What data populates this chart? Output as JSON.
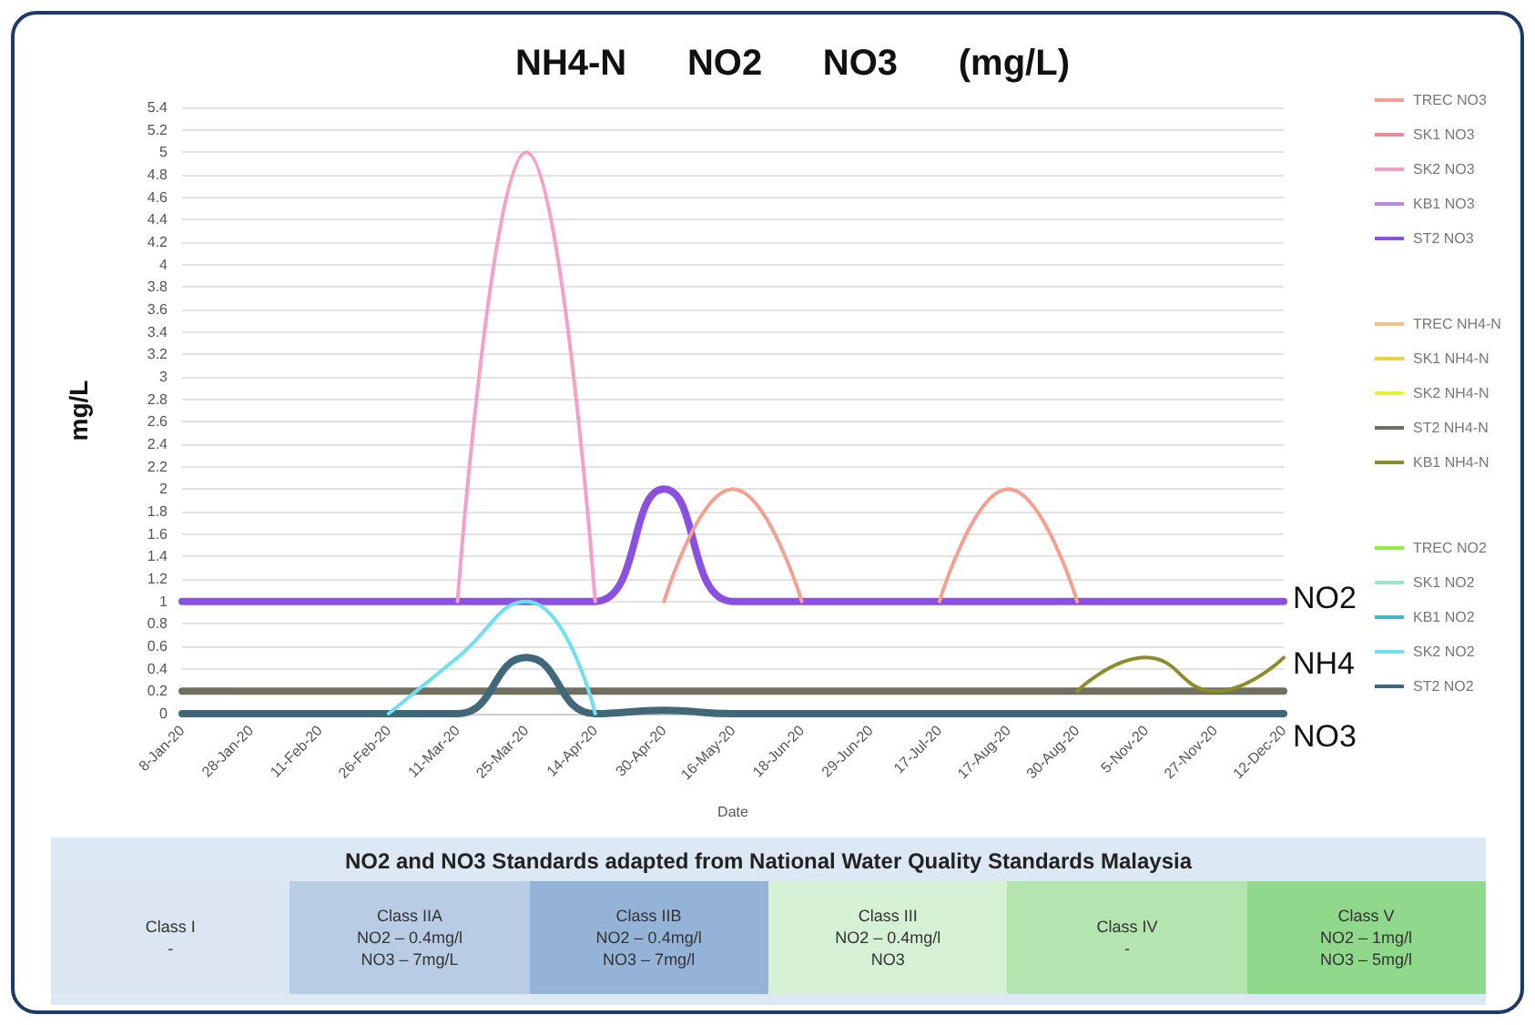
{
  "chart_data": {
    "type": "line",
    "title": "NH4-N      NO2      NO3      (mg/L)",
    "xlabel": "Date",
    "ylabel": "mg/L",
    "categories": [
      "8-Jan-20",
      "28-Jan-20",
      "11-Feb-20",
      "26-Feb-20",
      "11-Mar-20",
      "25-Mar-20",
      "14-Apr-20",
      "30-Apr-20",
      "16-May-20",
      "18-Jun-20",
      "29-Jun-20",
      "17-Jul-20",
      "17-Aug-20",
      "30-Aug-20",
      "5-Nov-20",
      "27-Nov-20",
      "12-Dec-20"
    ],
    "series": [
      {
        "name": "TREC NO3",
        "color": "#f4a090",
        "values": [
          null,
          null,
          null,
          null,
          null,
          null,
          null,
          1,
          2,
          1,
          null,
          1,
          2,
          1,
          null,
          null,
          null
        ]
      },
      {
        "name": "SK1 NO3",
        "color": "#f08898",
        "values": [
          null,
          null,
          null,
          null,
          null,
          null,
          null,
          null,
          null,
          null,
          null,
          null,
          null,
          null,
          null,
          null,
          null
        ]
      },
      {
        "name": "SK2 NO3",
        "color": "#f4a0c8",
        "values": [
          null,
          null,
          null,
          null,
          1,
          5,
          1,
          null,
          null,
          null,
          null,
          null,
          null,
          null,
          null,
          null,
          null
        ]
      },
      {
        "name": "KB1 NO3",
        "color": "#c088e0",
        "values": [
          null,
          null,
          null,
          null,
          null,
          null,
          null,
          null,
          null,
          null,
          null,
          null,
          null,
          null,
          null,
          null,
          null
        ]
      },
      {
        "name": "ST2 NO3",
        "color": "#8a50e0",
        "values": [
          1,
          1,
          1,
          1,
          1,
          1,
          1,
          2,
          1,
          1,
          1,
          1,
          1,
          1,
          1,
          1,
          1
        ]
      },
      {
        "name": "TREC NH4-N",
        "color": "#f4c090",
        "values": [
          null,
          null,
          null,
          null,
          null,
          null,
          null,
          null,
          null,
          null,
          null,
          null,
          null,
          null,
          null,
          null,
          null
        ]
      },
      {
        "name": "SK1 NH4-N",
        "color": "#f0d040",
        "values": [
          null,
          null,
          null,
          null,
          null,
          null,
          null,
          null,
          null,
          null,
          null,
          null,
          null,
          null,
          null,
          null,
          null
        ]
      },
      {
        "name": "SK2 NH4-N",
        "color": "#e8f040",
        "values": [
          null,
          null,
          null,
          null,
          null,
          null,
          null,
          null,
          null,
          null,
          null,
          null,
          null,
          null,
          null,
          null,
          null
        ]
      },
      {
        "name": "ST2 NH4-N",
        "color": "#707060",
        "values": [
          0.2,
          0.2,
          0.2,
          0.2,
          0.2,
          0.2,
          0.2,
          0.2,
          0.2,
          0.2,
          0.2,
          0.2,
          0.2,
          0.2,
          0.2,
          0.2,
          0.2
        ]
      },
      {
        "name": "KB1 NH4-N",
        "color": "#8c8c28",
        "values": [
          null,
          null,
          null,
          null,
          null,
          null,
          null,
          null,
          null,
          null,
          null,
          null,
          null,
          0.2,
          0.5,
          0.2,
          0.5
        ]
      },
      {
        "name": "TREC NO2",
        "color": "#90f040",
        "values": [
          null,
          null,
          null,
          null,
          null,
          null,
          null,
          null,
          null,
          null,
          null,
          null,
          null,
          null,
          null,
          null,
          null
        ]
      },
      {
        "name": "SK1 NO2",
        "color": "#98e8c0",
        "values": [
          null,
          null,
          null,
          null,
          null,
          null,
          null,
          null,
          null,
          null,
          null,
          null,
          null,
          null,
          null,
          null,
          null
        ]
      },
      {
        "name": "KB1 NO2",
        "color": "#40b8c8",
        "values": [
          null,
          null,
          null,
          null,
          null,
          null,
          null,
          null,
          null,
          null,
          null,
          null,
          null,
          null,
          null,
          null,
          null
        ]
      },
      {
        "name": "SK2 NO2",
        "color": "#70e0f0",
        "values": [
          null,
          null,
          null,
          0,
          0.5,
          1,
          0,
          null,
          null,
          null,
          null,
          null,
          null,
          null,
          null,
          null,
          null
        ]
      },
      {
        "name": "ST2 NO2",
        "color": "#406878",
        "values": [
          0,
          0,
          0,
          0,
          0,
          0.5,
          0,
          0.03,
          0,
          0,
          0,
          0,
          0,
          0,
          0,
          0,
          0
        ]
      }
    ],
    "ylim": [
      0,
      5.4
    ],
    "yticks": [
      0,
      0.2,
      0.4,
      0.6,
      0.8,
      1,
      1.2,
      1.4,
      1.6,
      1.8,
      2,
      2.2,
      2.4,
      2.6,
      2.8,
      3,
      3.2,
      3.4,
      3.6,
      3.8,
      4,
      4.2,
      4.4,
      4.6,
      4.8,
      5,
      5.2,
      5.4
    ],
    "grid": "y",
    "legend": "right",
    "marker": "none",
    "line_style": "solid",
    "annotations": [
      "NO2",
      "NH4",
      "NO3",
      "NO2 and NO3 Standards adapted from National Water Quality Standards Malaysia",
      "Class I\n-",
      "Class IIA\nNO2 – 0.4mg/l\nNO3 – 7mg/L",
      "Class IIB\nNO2 – 0.4mg/l\nNO3 – 7mg/l",
      "Class III\nNO2 – 0.4mg/l\nNO3",
      "Class IV\n-",
      "Class V\nNO2 – 1mg/l\nNO3 – 5mg/l"
    ]
  }
}
